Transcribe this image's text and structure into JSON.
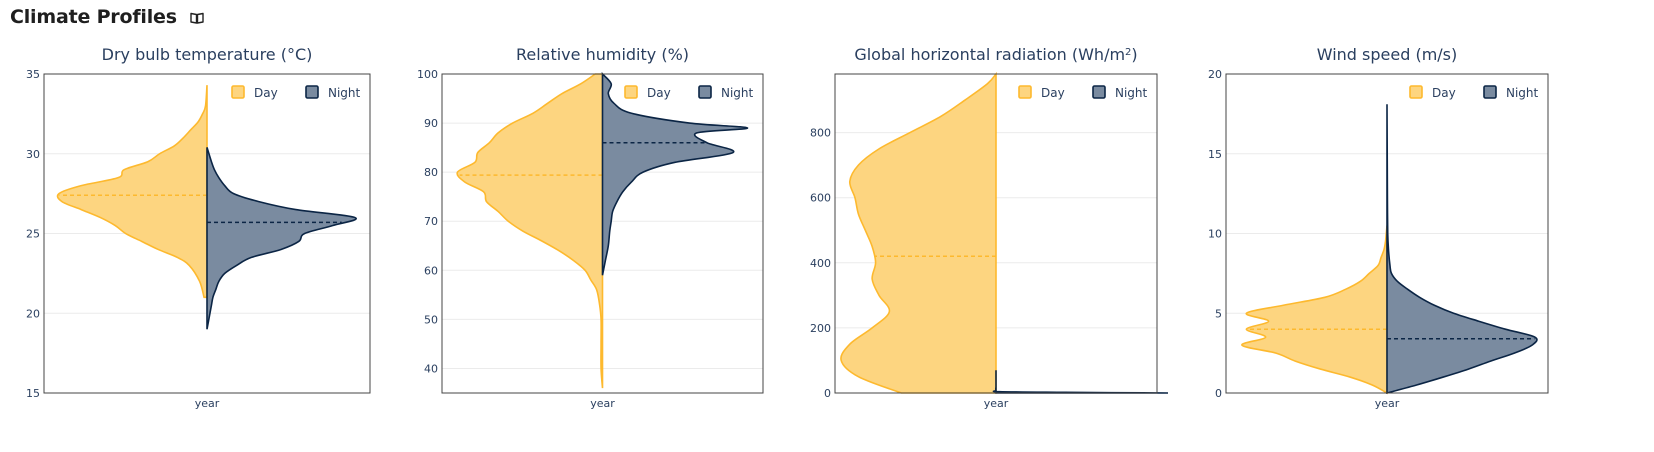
{
  "page": {
    "title": "Climate Profiles",
    "help_icon": "book-icon"
  },
  "colors": {
    "day": "#fdb92e",
    "day_fill": "#fdd580",
    "night": "#0b2545",
    "night_fill": "#7a8ba0",
    "axis": "#444444",
    "grid": "#ebebeb",
    "text": "#2a3f5f"
  },
  "chart_data": [
    {
      "type": "violin",
      "title": "Dry bulb temperature (°C)",
      "title_sup": "",
      "xlabel": "year",
      "ylim": [
        15,
        35
      ],
      "yticks": [
        15,
        20,
        25,
        30,
        35
      ],
      "legend": {
        "position": "top-right",
        "entries": [
          "Day",
          "Night"
        ]
      },
      "series": [
        {
          "name": "Day",
          "side": "negative",
          "median": 27.4,
          "y": [
            21,
            22,
            23,
            23.5,
            24,
            24.5,
            25,
            25.5,
            26,
            26.5,
            27,
            27.5,
            28,
            28.5,
            29,
            29.5,
            30,
            30.5,
            31,
            31.5,
            32,
            32.5,
            33,
            34.3
          ],
          "density": [
            0.02,
            0.05,
            0.12,
            0.2,
            0.33,
            0.44,
            0.55,
            0.62,
            0.72,
            0.85,
            0.98,
            1.0,
            0.85,
            0.6,
            0.56,
            0.4,
            0.32,
            0.22,
            0.16,
            0.11,
            0.06,
            0.03,
            0.01,
            0.0
          ]
        },
        {
          "name": "Night",
          "side": "positive",
          "median": 25.7,
          "y": [
            19,
            20,
            20.5,
            21,
            21.5,
            22,
            22.5,
            23,
            23.5,
            24,
            24.5,
            25,
            25.5,
            26,
            26.5,
            27,
            27.5,
            28,
            28.5,
            29,
            29.5,
            30.4
          ],
          "density": [
            0.0,
            0.02,
            0.03,
            0.04,
            0.06,
            0.08,
            0.12,
            0.2,
            0.3,
            0.5,
            0.62,
            0.66,
            0.85,
            1.0,
            0.6,
            0.35,
            0.18,
            0.12,
            0.08,
            0.05,
            0.03,
            0.0
          ]
        }
      ]
    },
    {
      "type": "violin",
      "title": "Relative humidity (%)",
      "title_sup": "",
      "xlabel": "year",
      "ylim": [
        35,
        100
      ],
      "yticks": [
        40,
        50,
        60,
        70,
        80,
        90,
        100
      ],
      "legend": {
        "position": "top-right",
        "entries": [
          "Day",
          "Night"
        ]
      },
      "series": [
        {
          "name": "Day",
          "side": "negative",
          "median": 79.4,
          "y": [
            36,
            40,
            45,
            50,
            53,
            56,
            58,
            60,
            62,
            64,
            66,
            68,
            70,
            72,
            74,
            76,
            78,
            80,
            82,
            84,
            86,
            88,
            90,
            92,
            94,
            96,
            98,
            100
          ],
          "density": [
            0.0,
            0.01,
            0.01,
            0.01,
            0.02,
            0.04,
            0.08,
            0.12,
            0.2,
            0.3,
            0.42,
            0.55,
            0.65,
            0.72,
            0.8,
            0.82,
            0.95,
            1.0,
            0.88,
            0.86,
            0.78,
            0.72,
            0.62,
            0.48,
            0.38,
            0.28,
            0.15,
            0.05
          ]
        },
        {
          "name": "Night",
          "side": "positive",
          "median": 86,
          "y": [
            59,
            62,
            65,
            68,
            70,
            72,
            74,
            76,
            78,
            80,
            82,
            84,
            86,
            88,
            89,
            90,
            92,
            94,
            96,
            98,
            100
          ],
          "density": [
            0.0,
            0.02,
            0.04,
            0.05,
            0.06,
            0.07,
            0.1,
            0.14,
            0.2,
            0.28,
            0.5,
            0.9,
            0.72,
            0.65,
            1.0,
            0.6,
            0.2,
            0.08,
            0.04,
            0.06,
            0.0
          ]
        }
      ]
    },
    {
      "type": "violin",
      "title": "Global horizontal radiation (Wh/m",
      "title_sup": "2",
      "title_suffix": ")",
      "xlabel": "year",
      "ylim": [
        0,
        980
      ],
      "yticks": [
        0,
        200,
        400,
        600,
        800
      ],
      "legend": {
        "position": "top-right",
        "entries": [
          "Day",
          "Night"
        ]
      },
      "series": [
        {
          "name": "Day",
          "side": "negative",
          "median": 420,
          "y": [
            0,
            50,
            100,
            150,
            200,
            250,
            300,
            350,
            400,
            450,
            500,
            550,
            600,
            650,
            700,
            750,
            800,
            850,
            900,
            950,
            980
          ],
          "density": [
            0.55,
            0.8,
            0.9,
            0.85,
            0.72,
            0.62,
            0.68,
            0.72,
            0.7,
            0.72,
            0.76,
            0.8,
            0.82,
            0.85,
            0.8,
            0.68,
            0.5,
            0.32,
            0.18,
            0.05,
            0.0
          ]
        },
        {
          "name": "Night",
          "side": "positive",
          "median": 0,
          "y": [
            0,
            2,
            4,
            8,
            20,
            40,
            60,
            70
          ],
          "density": [
            1.0,
            0.4,
            0.02,
            0.0,
            0.0,
            0.0,
            0.0,
            0.0
          ]
        }
      ]
    },
    {
      "type": "violin",
      "title": "Wind speed (m/s)",
      "title_sup": "",
      "xlabel": "year",
      "ylim": [
        0,
        20
      ],
      "yticks": [
        0,
        5,
        10,
        15,
        20
      ],
      "legend": {
        "position": "top-right",
        "entries": [
          "Day",
          "Night"
        ]
      },
      "series": [
        {
          "name": "Day",
          "side": "negative",
          "median": 4,
          "y": [
            0,
            0.5,
            1,
            1.5,
            2,
            2.5,
            3,
            3.5,
            4,
            4.5,
            5,
            5.5,
            6,
            6.5,
            7,
            7.5,
            8,
            8.5,
            9,
            9.5,
            10,
            10.5
          ],
          "density": [
            0.0,
            0.1,
            0.25,
            0.45,
            0.62,
            0.75,
            0.98,
            0.82,
            0.95,
            0.8,
            0.95,
            0.7,
            0.42,
            0.28,
            0.18,
            0.12,
            0.06,
            0.04,
            0.02,
            0.01,
            0.005,
            0.0
          ]
        },
        {
          "name": "Night",
          "side": "positive",
          "median": 3.4,
          "y": [
            0,
            0.5,
            1,
            1.5,
            2,
            2.5,
            3,
            3.5,
            4,
            4.5,
            5,
            5.5,
            6,
            6.5,
            7,
            7.5,
            8,
            9,
            10,
            12,
            14,
            16,
            18.1
          ],
          "density": [
            0.0,
            0.2,
            0.38,
            0.55,
            0.7,
            0.86,
            0.98,
            1.0,
            0.8,
            0.62,
            0.45,
            0.32,
            0.22,
            0.14,
            0.07,
            0.03,
            0.02,
            0.01,
            0.005,
            0.003,
            0.002,
            0.001,
            0.0
          ]
        }
      ]
    }
  ]
}
